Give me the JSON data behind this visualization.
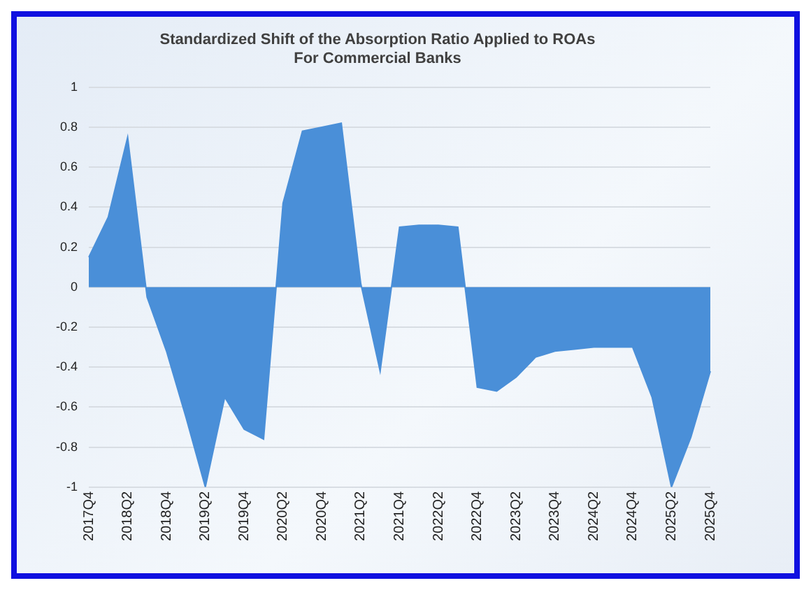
{
  "chart_data": {
    "type": "area",
    "title": [
      "Standardized Shift of the Absorption Ratio Applied to ROAs",
      "For Commercial Banks"
    ],
    "categories": [
      "2017Q4",
      null,
      "2018Q2",
      null,
      "2018Q4",
      null,
      "2019Q2",
      null,
      "2019Q4",
      null,
      "2020Q2",
      null,
      "2020Q4",
      null,
      "2021Q2",
      null,
      "2021Q4",
      null,
      "2022Q2",
      null,
      "2022Q4",
      null,
      "2023Q2",
      null,
      "2023Q4",
      null,
      "2024Q2",
      null,
      "2024Q4",
      null,
      "2025Q2",
      null,
      "2025Q4"
    ],
    "series": [
      {
        "color": "#4a8fd8",
        "values": [
          0.15,
          0.35,
          0.75,
          -0.05,
          -0.32,
          -0.65,
          -1,
          -0.55,
          -0.71,
          -0.76,
          0.42,
          0.78,
          0.8,
          0.82,
          0.02,
          -0.42,
          0.3,
          0.31,
          0.31,
          0.3,
          -0.5,
          -0.52,
          -0.45,
          -0.35,
          -0.32,
          -0.31,
          -0.3,
          -0.3,
          -0.3,
          -0.55,
          -1,
          -0.75,
          -0.42
        ]
      }
    ],
    "ylim": [
      -1,
      1
    ],
    "yticks": [
      -1,
      -0.8,
      -0.6,
      -0.4,
      -0.2,
      0,
      0.2,
      0.4,
      0.6,
      0.8,
      1
    ],
    "grid": "y",
    "legend": false
  }
}
